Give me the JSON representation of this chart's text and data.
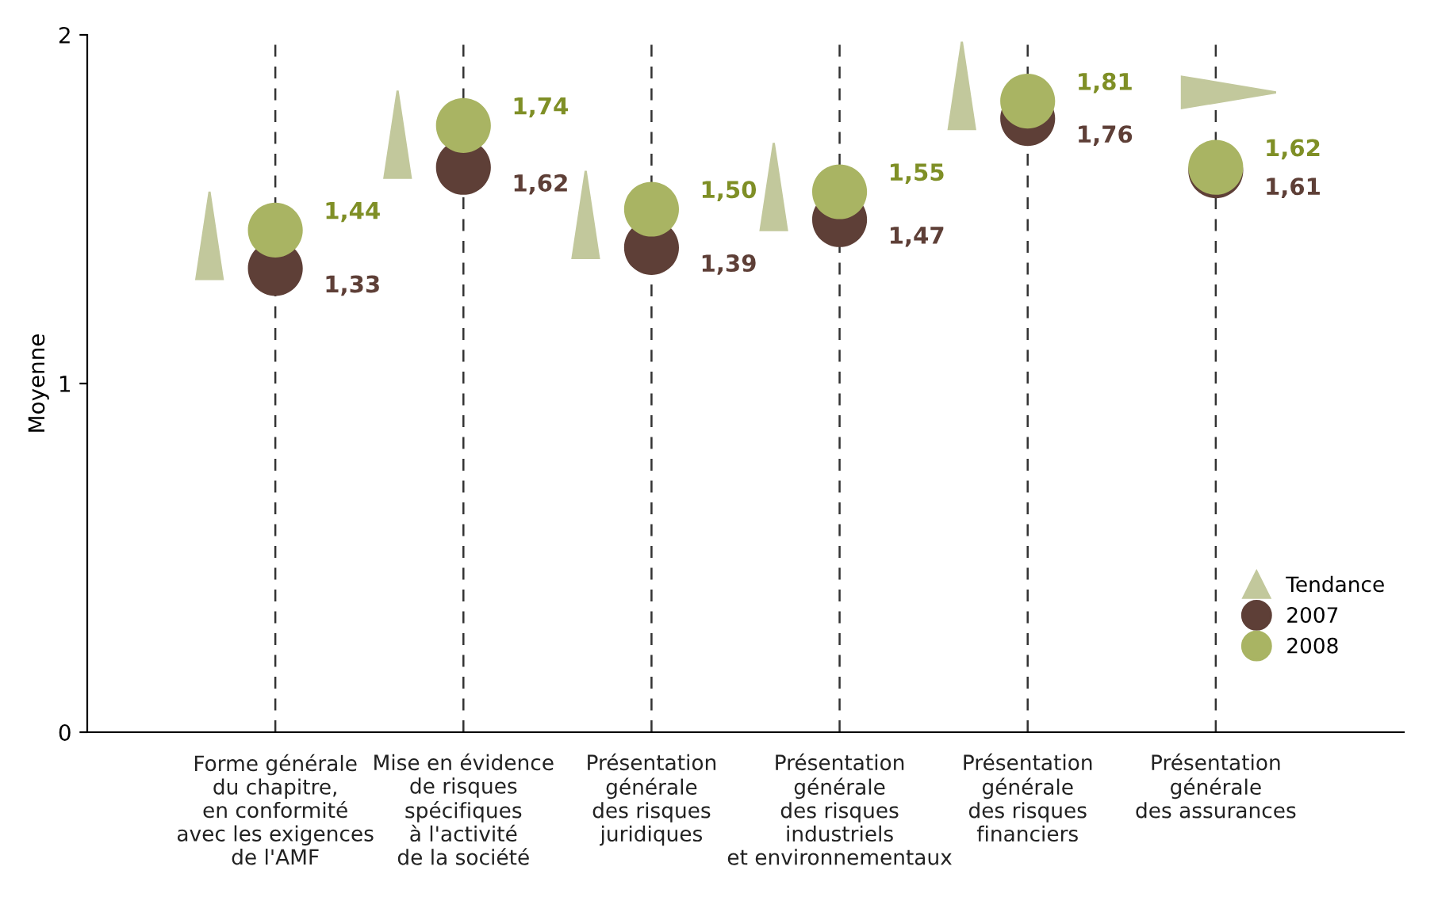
{
  "chart_data": {
    "type": "scatter",
    "ylabel": "Moyenne",
    "categories": [
      "Forme générale\ndu chapitre,\nen conformité\navec les exigences\nde l'AMF",
      "Mise en évidence\nde risques\nspécifiques\nà l'activité\nde la société",
      "Présentation\ngénérale\ndes risques\njuridiques",
      "Présentation\ngénérale\ndes risques\nindustriels\net environnementaux",
      "Présentation\ngénérale\ndes risques\nfinanciers",
      "Présentation\ngénérale\ndes assurances"
    ],
    "series": [
      {
        "name": "2007",
        "color": "#5e3f37",
        "values": [
          1.33,
          1.62,
          1.39,
          1.47,
          1.76,
          1.61
        ],
        "value_labels": [
          "1,33",
          "1,62",
          "1,39",
          "1,47",
          "1,76",
          "1,61"
        ]
      },
      {
        "name": "2008",
        "color": "#a9b463",
        "values": [
          1.44,
          1.74,
          1.5,
          1.55,
          1.81,
          1.62
        ],
        "value_labels": [
          "1,44",
          "1,74",
          "1,50",
          "1,55",
          "1,81",
          "1,62"
        ]
      }
    ],
    "ylim": [
      0,
      2
    ],
    "yticks": [
      0,
      1,
      2
    ],
    "grid": "x",
    "legend": "bottom right",
    "marker": "circle",
    "annotations": [
      "Tendance"
    ]
  }
}
